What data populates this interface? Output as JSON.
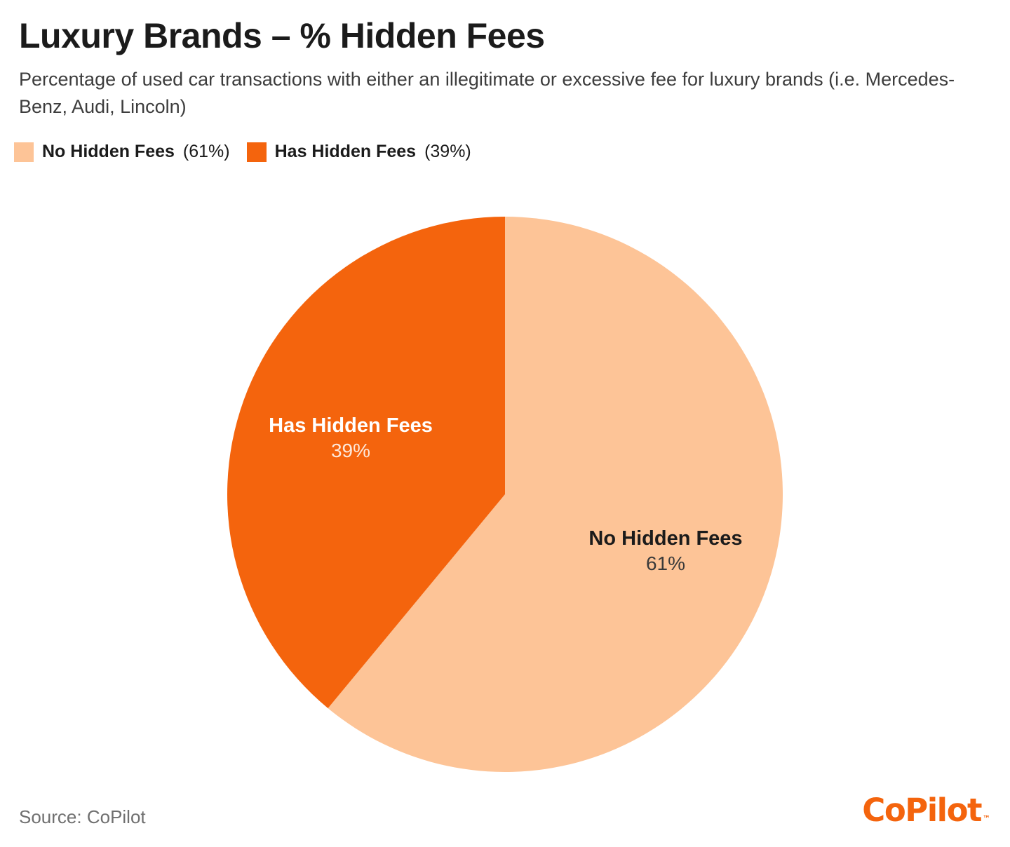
{
  "header": {
    "title": "Luxury Brands – % Hidden Fees",
    "subtitle": "Percentage of used car transactions with either an illegitimate or excessive fee for luxury brands (i.e. Mercedes-Benz, Audi, Lincoln)"
  },
  "legend": {
    "items": [
      {
        "label": "No Hidden Fees",
        "pct": "(61%)",
        "color": "#FDC497"
      },
      {
        "label": "Has Hidden Fees",
        "pct": "(39%)",
        "color": "#F4640D"
      }
    ]
  },
  "chart_data": {
    "type": "pie",
    "title": "Luxury Brands – % Hidden Fees",
    "units": "percent",
    "slices": [
      {
        "label": "No Hidden Fees",
        "value": 61,
        "pct_label": "61%",
        "color": "#FDC497"
      },
      {
        "label": "Has Hidden Fees",
        "value": 39,
        "pct_label": "39%",
        "color": "#F4640D"
      }
    ],
    "start_angle_deg_from_top": 0,
    "direction": "clockwise",
    "legend_position": "top-left"
  },
  "footer": {
    "source": "Source: CoPilot",
    "logo_text": "CoPilot",
    "logo_tm": "™",
    "brand_color": "#F4640D"
  }
}
